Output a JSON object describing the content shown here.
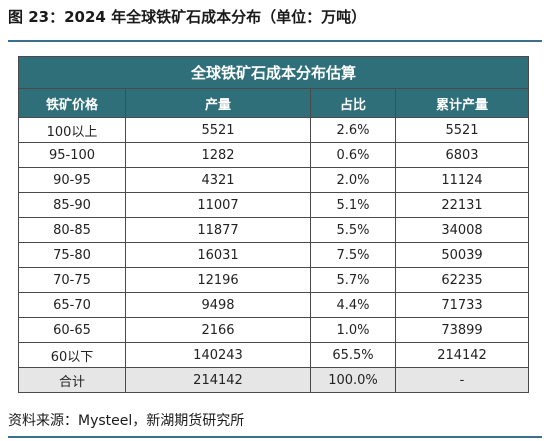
{
  "title": "图 23：2024 年全球铁矿石成本分布（单位：万吨）",
  "table": {
    "caption": "全球铁矿石成本分布估算",
    "headers": [
      "铁矿价格",
      "产量",
      "占比",
      "累计产量"
    ],
    "rows": [
      [
        "100以上",
        "5521",
        "2.6%",
        "5521"
      ],
      [
        "95-100",
        "1282",
        "0.6%",
        "6803"
      ],
      [
        "90-95",
        "4321",
        "2.0%",
        "11124"
      ],
      [
        "85-90",
        "11007",
        "5.1%",
        "22131"
      ],
      [
        "80-85",
        "11877",
        "5.5%",
        "34008"
      ],
      [
        "75-80",
        "16031",
        "7.5%",
        "50039"
      ],
      [
        "70-75",
        "12196",
        "5.7%",
        "62235"
      ],
      [
        "65-70",
        "9498",
        "4.4%",
        "71733"
      ],
      [
        "60-65",
        "2166",
        "1.0%",
        "73899"
      ],
      [
        "60以下",
        "140243",
        "65.5%",
        "214142"
      ]
    ],
    "total": [
      "合计",
      "214142",
      "100.0%",
      "-"
    ]
  },
  "source": "资料来源：Mysteel，新湖期货研究所"
}
